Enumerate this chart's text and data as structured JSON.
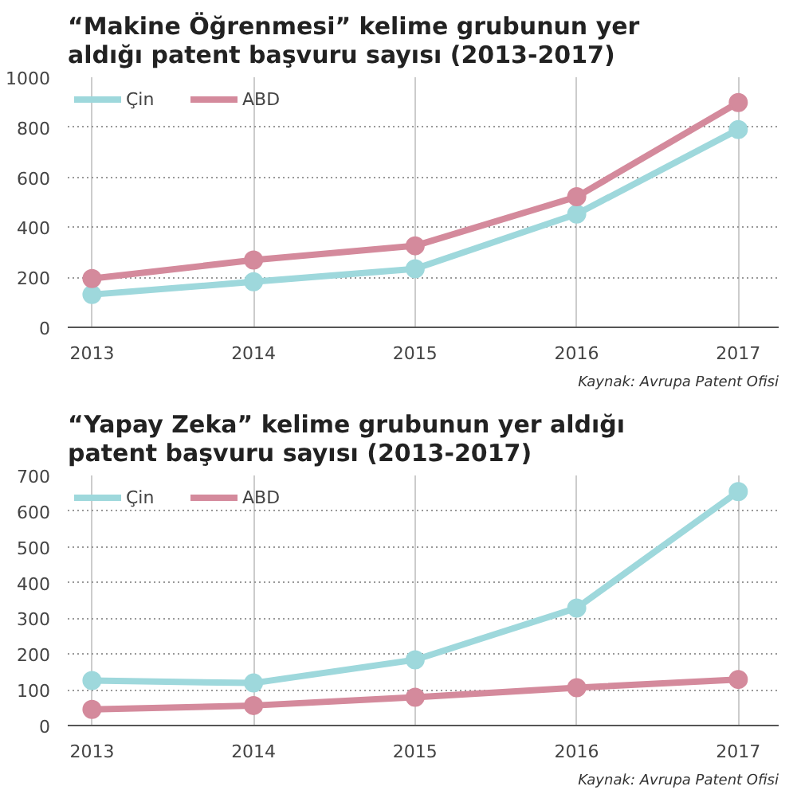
{
  "chart_data": [
    {
      "type": "line",
      "title": "“Makine Öğrenmesi” kelime grubunun yer aldığı patent başvuru sayısı (2013-2017)",
      "x": [
        2013,
        2014,
        2015,
        2016,
        2017
      ],
      "xlim": [
        2012.85,
        2017.25
      ],
      "xticks": [
        2013,
        2014,
        2015,
        2016,
        2017
      ],
      "ylim": [
        0,
        1000
      ],
      "yticks": [
        0,
        200,
        400,
        600,
        800,
        1000
      ],
      "grid": true,
      "legend": "top left",
      "marker": "circle",
      "line_style": "solid",
      "series": [
        {
          "name": "Çin",
          "color": "#9ed8dc",
          "values": [
            131,
            182,
            234,
            453,
            791
          ]
        },
        {
          "name": "ABD",
          "color": "#d48a9c",
          "values": [
            195,
            269,
            326,
            522,
            899
          ]
        }
      ],
      "annotations": [
        "Kaynak: Avrupa Patent Ofisi"
      ]
    },
    {
      "type": "line",
      "title": "“Yapay Zeka” kelime grubunun yer aldığı patent başvuru sayısı (2013-2017)",
      "x": [
        2013,
        2014,
        2015,
        2016,
        2017
      ],
      "xlim": [
        2012.85,
        2017.25
      ],
      "xticks": [
        2013,
        2014,
        2015,
        2016,
        2017
      ],
      "ylim": [
        0,
        700
      ],
      "yticks": [
        0,
        100,
        200,
        300,
        400,
        500,
        600,
        700
      ],
      "grid": true,
      "legend": "top left",
      "marker": "circle",
      "line_style": "solid",
      "series": [
        {
          "name": "Çin",
          "color": "#9ed8dc",
          "values": [
            126,
            119,
            184,
            329,
            655
          ]
        },
        {
          "name": "ABD",
          "color": "#d48a9c",
          "values": [
            45,
            56,
            79,
            106,
            129
          ]
        }
      ],
      "annotations": [
        "Kaynak: Avrupa Patent Ofisi"
      ]
    }
  ]
}
